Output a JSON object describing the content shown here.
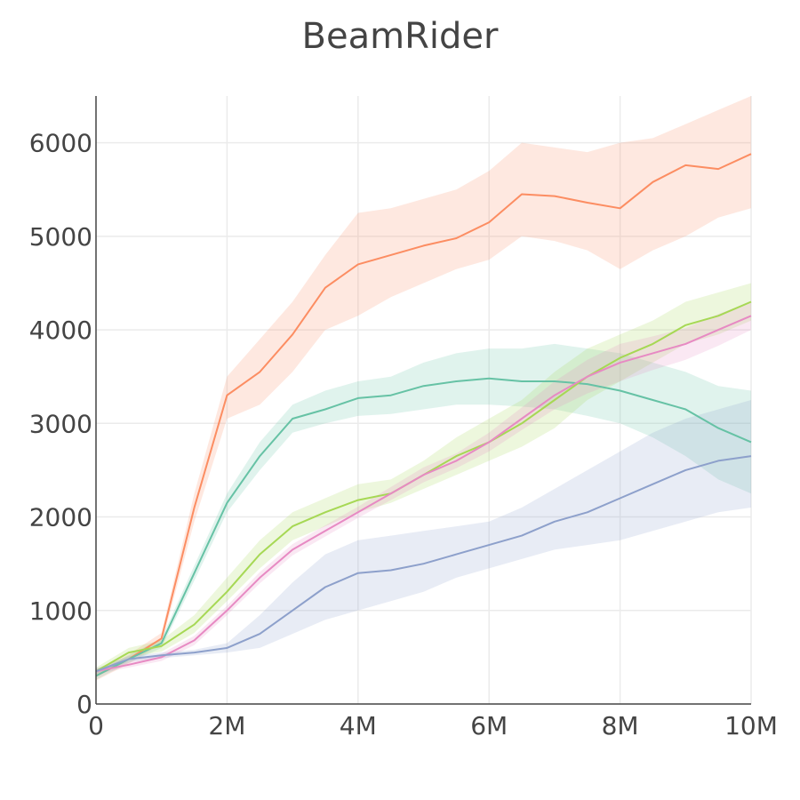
{
  "chart_data": {
    "type": "line",
    "title": "BeamRider",
    "xlabel": "",
    "ylabel": "",
    "xlim": [
      0,
      10000000
    ],
    "ylim": [
      0,
      6500
    ],
    "x_ticks": [
      {
        "value": 0,
        "label": "0"
      },
      {
        "value": 2000000,
        "label": "2M"
      },
      {
        "value": 4000000,
        "label": "4M"
      },
      {
        "value": 6000000,
        "label": "6M"
      },
      {
        "value": 8000000,
        "label": "8M"
      },
      {
        "value": 10000000,
        "label": "10M"
      }
    ],
    "y_ticks": [
      {
        "value": 0,
        "label": "0"
      },
      {
        "value": 1000,
        "label": "1000"
      },
      {
        "value": 2000,
        "label": "2000"
      },
      {
        "value": 3000,
        "label": "3000"
      },
      {
        "value": 4000,
        "label": "4000"
      },
      {
        "value": 5000,
        "label": "5000"
      },
      {
        "value": 6000,
        "label": "6000"
      }
    ],
    "grid": true,
    "legend": "none",
    "series": [
      {
        "color": "#fc8d62",
        "x": [
          0,
          500000,
          1000000,
          1500000,
          2000000,
          2500000,
          3000000,
          3500000,
          4000000,
          4500000,
          5000000,
          5500000,
          6000000,
          6500000,
          7000000,
          7500000,
          8000000,
          8500000,
          9000000,
          9500000,
          10000000
        ],
        "y": [
          300,
          480,
          700,
          2100,
          3300,
          3550,
          3950,
          4450,
          4700,
          4800,
          4900,
          4980,
          5150,
          5450,
          5430,
          5360,
          5300,
          5580,
          5760,
          5720,
          5880
        ],
        "lower": [
          250,
          430,
          640,
          1950,
          3050,
          3200,
          3550,
          4000,
          4150,
          4350,
          4500,
          4650,
          4750,
          5000,
          4950,
          4850,
          4650,
          4850,
          5000,
          5200,
          5300
        ],
        "upper": [
          350,
          530,
          760,
          2250,
          3500,
          3900,
          4300,
          4800,
          5250,
          5300,
          5400,
          5500,
          5700,
          6000,
          5950,
          5900,
          6000,
          6050,
          6200,
          6350,
          6500
        ]
      },
      {
        "color": "#66c2a5",
        "x": [
          0,
          500000,
          1000000,
          1500000,
          2000000,
          2500000,
          3000000,
          3500000,
          4000000,
          4500000,
          5000000,
          5500000,
          6000000,
          6500000,
          7000000,
          7500000,
          8000000,
          8500000,
          9000000,
          9500000,
          10000000
        ],
        "y": [
          300,
          480,
          650,
          1400,
          2150,
          2650,
          3050,
          3150,
          3270,
          3300,
          3400,
          3450,
          3480,
          3450,
          3450,
          3420,
          3350,
          3250,
          3150,
          2950,
          2800
        ],
        "lower": [
          260,
          440,
          600,
          1320,
          2050,
          2500,
          2900,
          3000,
          3080,
          3100,
          3150,
          3200,
          3200,
          3180,
          3150,
          3080,
          3000,
          2850,
          2650,
          2400,
          2250
        ],
        "upper": [
          340,
          520,
          700,
          1480,
          2250,
          2800,
          3200,
          3350,
          3450,
          3500,
          3650,
          3750,
          3800,
          3800,
          3850,
          3800,
          3750,
          3650,
          3550,
          3400,
          3350
        ]
      },
      {
        "color": "#a6d854",
        "x": [
          0,
          500000,
          1000000,
          1500000,
          2000000,
          2500000,
          3000000,
          3500000,
          4000000,
          4500000,
          5000000,
          5500000,
          6000000,
          6500000,
          7000000,
          7500000,
          8000000,
          8500000,
          9000000,
          9500000,
          10000000
        ],
        "y": [
          350,
          550,
          620,
          850,
          1200,
          1600,
          1900,
          2050,
          2180,
          2250,
          2450,
          2650,
          2800,
          3000,
          3250,
          3500,
          3700,
          3850,
          4050,
          4150,
          4300
        ],
        "lower": [
          310,
          500,
          560,
          760,
          1100,
          1450,
          1750,
          1900,
          2050,
          2150,
          2300,
          2450,
          2600,
          2750,
          2950,
          3250,
          3450,
          3650,
          3850,
          3950,
          4100
        ],
        "upper": [
          390,
          600,
          680,
          950,
          1350,
          1750,
          2050,
          2200,
          2350,
          2400,
          2600,
          2850,
          3050,
          3250,
          3550,
          3800,
          3950,
          4100,
          4300,
          4400,
          4500
        ]
      },
      {
        "color": "#e78ac3",
        "x": [
          0,
          500000,
          1000000,
          1500000,
          2000000,
          2500000,
          3000000,
          3500000,
          4000000,
          4500000,
          5000000,
          5500000,
          6000000,
          6500000,
          7000000,
          7500000,
          8000000,
          8500000,
          9000000,
          9500000,
          10000000
        ],
        "y": [
          350,
          420,
          500,
          680,
          1000,
          1350,
          1650,
          1850,
          2050,
          2250,
          2450,
          2600,
          2800,
          3050,
          3300,
          3500,
          3650,
          3750,
          3850,
          4000,
          4150
        ],
        "lower": [
          320,
          390,
          460,
          630,
          950,
          1290,
          1590,
          1790,
          1990,
          2180,
          2370,
          2520,
          2700,
          2930,
          3150,
          3320,
          3450,
          3570,
          3680,
          3830,
          4000
        ],
        "upper": [
          380,
          450,
          540,
          730,
          1050,
          1410,
          1710,
          1910,
          2110,
          2320,
          2530,
          2680,
          2900,
          3170,
          3450,
          3680,
          3850,
          3930,
          4020,
          4170,
          4300
        ]
      },
      {
        "color": "#8da0cb",
        "x": [
          0,
          500000,
          1000000,
          1500000,
          2000000,
          2500000,
          3000000,
          3500000,
          4000000,
          4500000,
          5000000,
          5500000,
          6000000,
          6500000,
          7000000,
          7500000,
          8000000,
          8500000,
          9000000,
          9500000,
          10000000
        ],
        "y": [
          350,
          480,
          520,
          550,
          600,
          750,
          1000,
          1250,
          1400,
          1430,
          1500,
          1600,
          1700,
          1800,
          1950,
          2050,
          2200,
          2350,
          2500,
          2600,
          2650
        ],
        "lower": [
          320,
          450,
          490,
          520,
          550,
          600,
          750,
          900,
          1000,
          1100,
          1200,
          1350,
          1450,
          1550,
          1650,
          1700,
          1750,
          1850,
          1950,
          2050,
          2100
        ],
        "upper": [
          380,
          510,
          550,
          580,
          650,
          950,
          1300,
          1600,
          1750,
          1800,
          1850,
          1900,
          1950,
          2100,
          2300,
          2500,
          2700,
          2900,
          3050,
          3150,
          3250
        ]
      }
    ]
  }
}
